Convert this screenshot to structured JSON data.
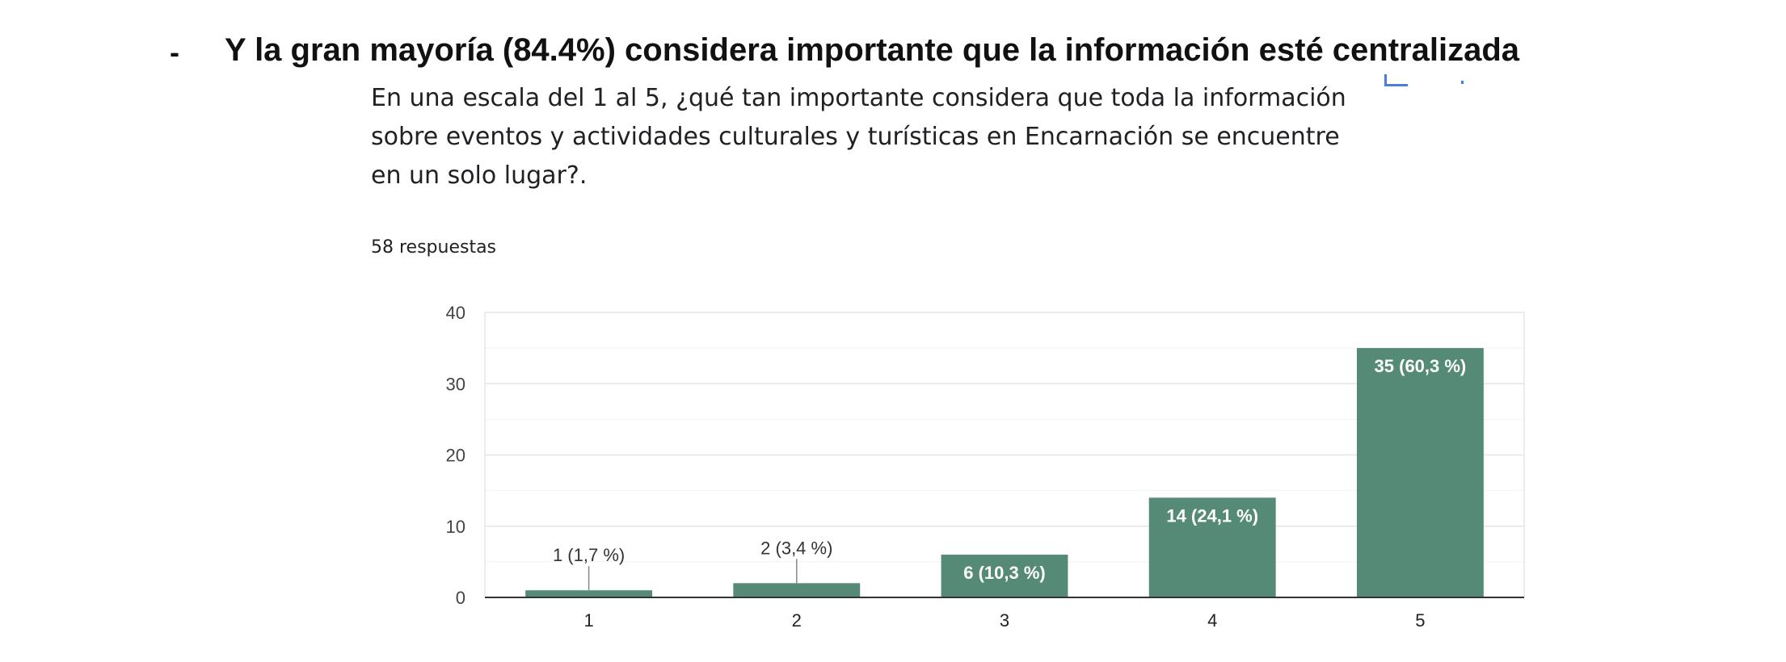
{
  "slide": {
    "bullet": "-",
    "headline": "Y la gran mayoría (84.4%) considera importante que la información esté centralizada"
  },
  "form": {
    "question": "En una escala del 1 al 5, ¿qué tan importante considera que toda la información sobre eventos y actividades culturales y turísticas en Encarnación se encuentre en un solo lugar?.",
    "responses": "58 respuestas"
  },
  "colors": {
    "bar": "#558b76",
    "grid": "#e6e6e6",
    "axis": "#333333"
  },
  "chart_data": {
    "type": "bar",
    "categories": [
      "1",
      "2",
      "3",
      "4",
      "5"
    ],
    "values": [
      1,
      2,
      6,
      14,
      35
    ],
    "data_labels": [
      "1 (1,7 %)",
      "2 (3,4 %)",
      "6 (10,3 %)",
      "14 (24,1 %)",
      "35 (60,3 %)"
    ],
    "ylim": [
      0,
      40
    ],
    "yticks": [
      "0",
      "10",
      "20",
      "30",
      "40"
    ],
    "grid": true,
    "title": "",
    "xlabel": "",
    "ylabel": ""
  }
}
